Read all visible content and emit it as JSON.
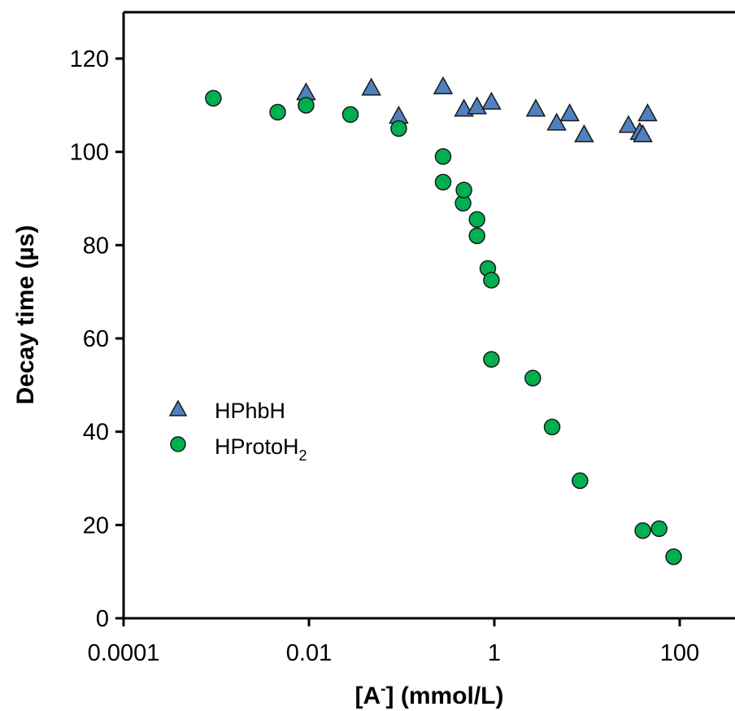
{
  "chart_data": {
    "type": "scatter",
    "title": "",
    "xlabel": {
      "prefix": "[A",
      "superscript": "-",
      "suffix": "] (mmol/L)"
    },
    "ylabel": "Decay time (µs)",
    "xscale": "log",
    "xlim": [
      0.0001,
      300
    ],
    "ylim": [
      0,
      130
    ],
    "xticks": [
      0.0001,
      0.01,
      1,
      100
    ],
    "xtick_labels": [
      "0.0001",
      "0.01",
      "1",
      "100"
    ],
    "yticks": [
      0,
      20,
      40,
      60,
      80,
      100,
      120
    ],
    "ytick_labels": [
      "0",
      "20",
      "40",
      "60",
      "80",
      "100",
      "120"
    ],
    "grid": false,
    "legend_position": "middle-left",
    "series": [
      {
        "name": "HPhbH",
        "name_parts": {
          "base": "HPhbH",
          "subscript": ""
        },
        "marker": "triangle",
        "color": "#4f81bd",
        "points": [
          [
            0.0093,
            112.5
          ],
          [
            0.047,
            113.5
          ],
          [
            0.093,
            107.5
          ],
          [
            0.28,
            113.8
          ],
          [
            0.47,
            109.0
          ],
          [
            0.65,
            109.5
          ],
          [
            0.93,
            110.5
          ],
          [
            2.8,
            109.0
          ],
          [
            4.7,
            106.0
          ],
          [
            6.5,
            108.0
          ],
          [
            9.3,
            103.5
          ],
          [
            28,
            105.5
          ],
          [
            37,
            104.0
          ],
          [
            40,
            103.5
          ],
          [
            45,
            108.0
          ]
        ]
      },
      {
        "name": "HProtoH2",
        "name_parts": {
          "base": "HProtoH",
          "subscript": "2"
        },
        "marker": "circle",
        "color": "#00b050",
        "points": [
          [
            0.00093,
            111.5
          ],
          [
            0.0046,
            108.5
          ],
          [
            0.0093,
            110.0
          ],
          [
            0.028,
            108.0
          ],
          [
            0.093,
            105.0
          ],
          [
            0.28,
            99.0
          ],
          [
            0.28,
            93.5
          ],
          [
            0.46,
            89.0
          ],
          [
            0.47,
            91.8
          ],
          [
            0.65,
            85.5
          ],
          [
            0.65,
            82.0
          ],
          [
            0.85,
            75.0
          ],
          [
            0.93,
            72.5
          ],
          [
            0.93,
            55.5
          ],
          [
            2.6,
            51.5
          ],
          [
            4.2,
            41.0
          ],
          [
            8.4,
            29.5
          ],
          [
            40,
            18.8
          ],
          [
            60,
            19.2
          ],
          [
            86,
            13.2
          ]
        ]
      }
    ]
  }
}
